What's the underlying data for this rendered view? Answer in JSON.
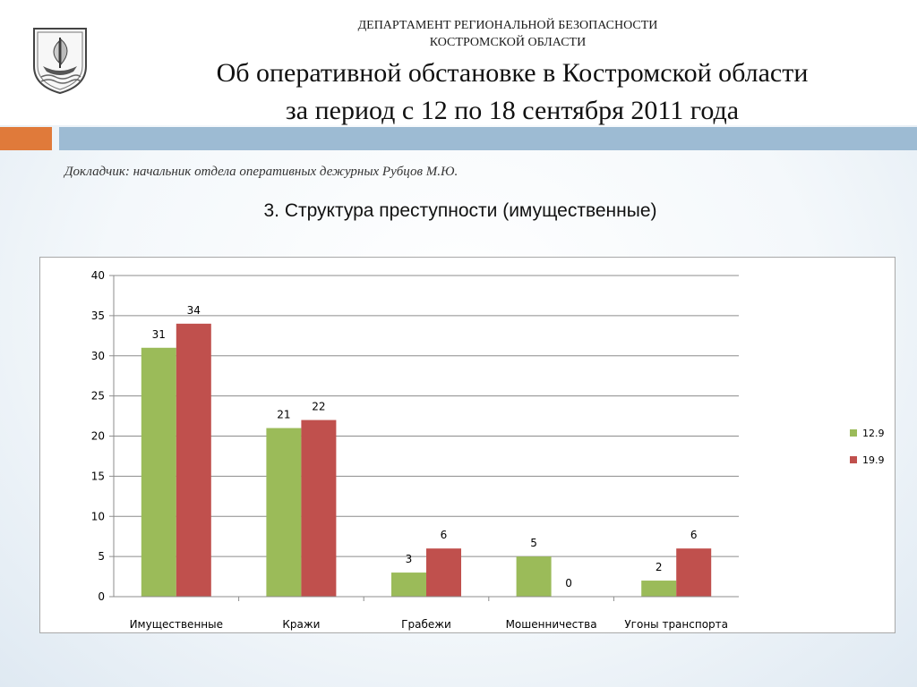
{
  "header": {
    "department_line1": "ДЕПАРТАМЕНТ РЕГИОНАЛЬНОЙ БЕЗОПАСНОСТИ",
    "department_line2": "КОСТРОМСКОЙ ОБЛАСТИ",
    "title_line1": "Об оперативной обстановке в Костромской области",
    "title_line2": "за период с 12 по 18 сентября 2011 года",
    "emblem_icon": "coat-of-arms-icon"
  },
  "reporter": "Докладчик: начальник отдела оперативных дежурных Рубцов М.Ю.",
  "section_title": "3. Структура преступности (имущественные)",
  "colors": {
    "orange": "#e07a3a",
    "blue": "#9dbbd3",
    "series1": "#9bbb59",
    "series2": "#c0504d"
  },
  "chart_data": {
    "type": "bar",
    "categories": [
      "Имущественные",
      "Кражи",
      "Грабежи",
      "Мошенничества",
      "Угоны транспорта"
    ],
    "series": [
      {
        "name": "12.9",
        "values": [
          31,
          21,
          3,
          5,
          2
        ],
        "color": "#9bbb59"
      },
      {
        "name": "19.9",
        "values": [
          34,
          22,
          6,
          0,
          6
        ],
        "color": "#c0504d"
      }
    ],
    "ylim": [
      0,
      40
    ],
    "yticks": [
      0,
      5,
      10,
      15,
      20,
      25,
      30,
      35,
      40
    ],
    "grid": true,
    "data_labels": true,
    "legend": "right"
  }
}
